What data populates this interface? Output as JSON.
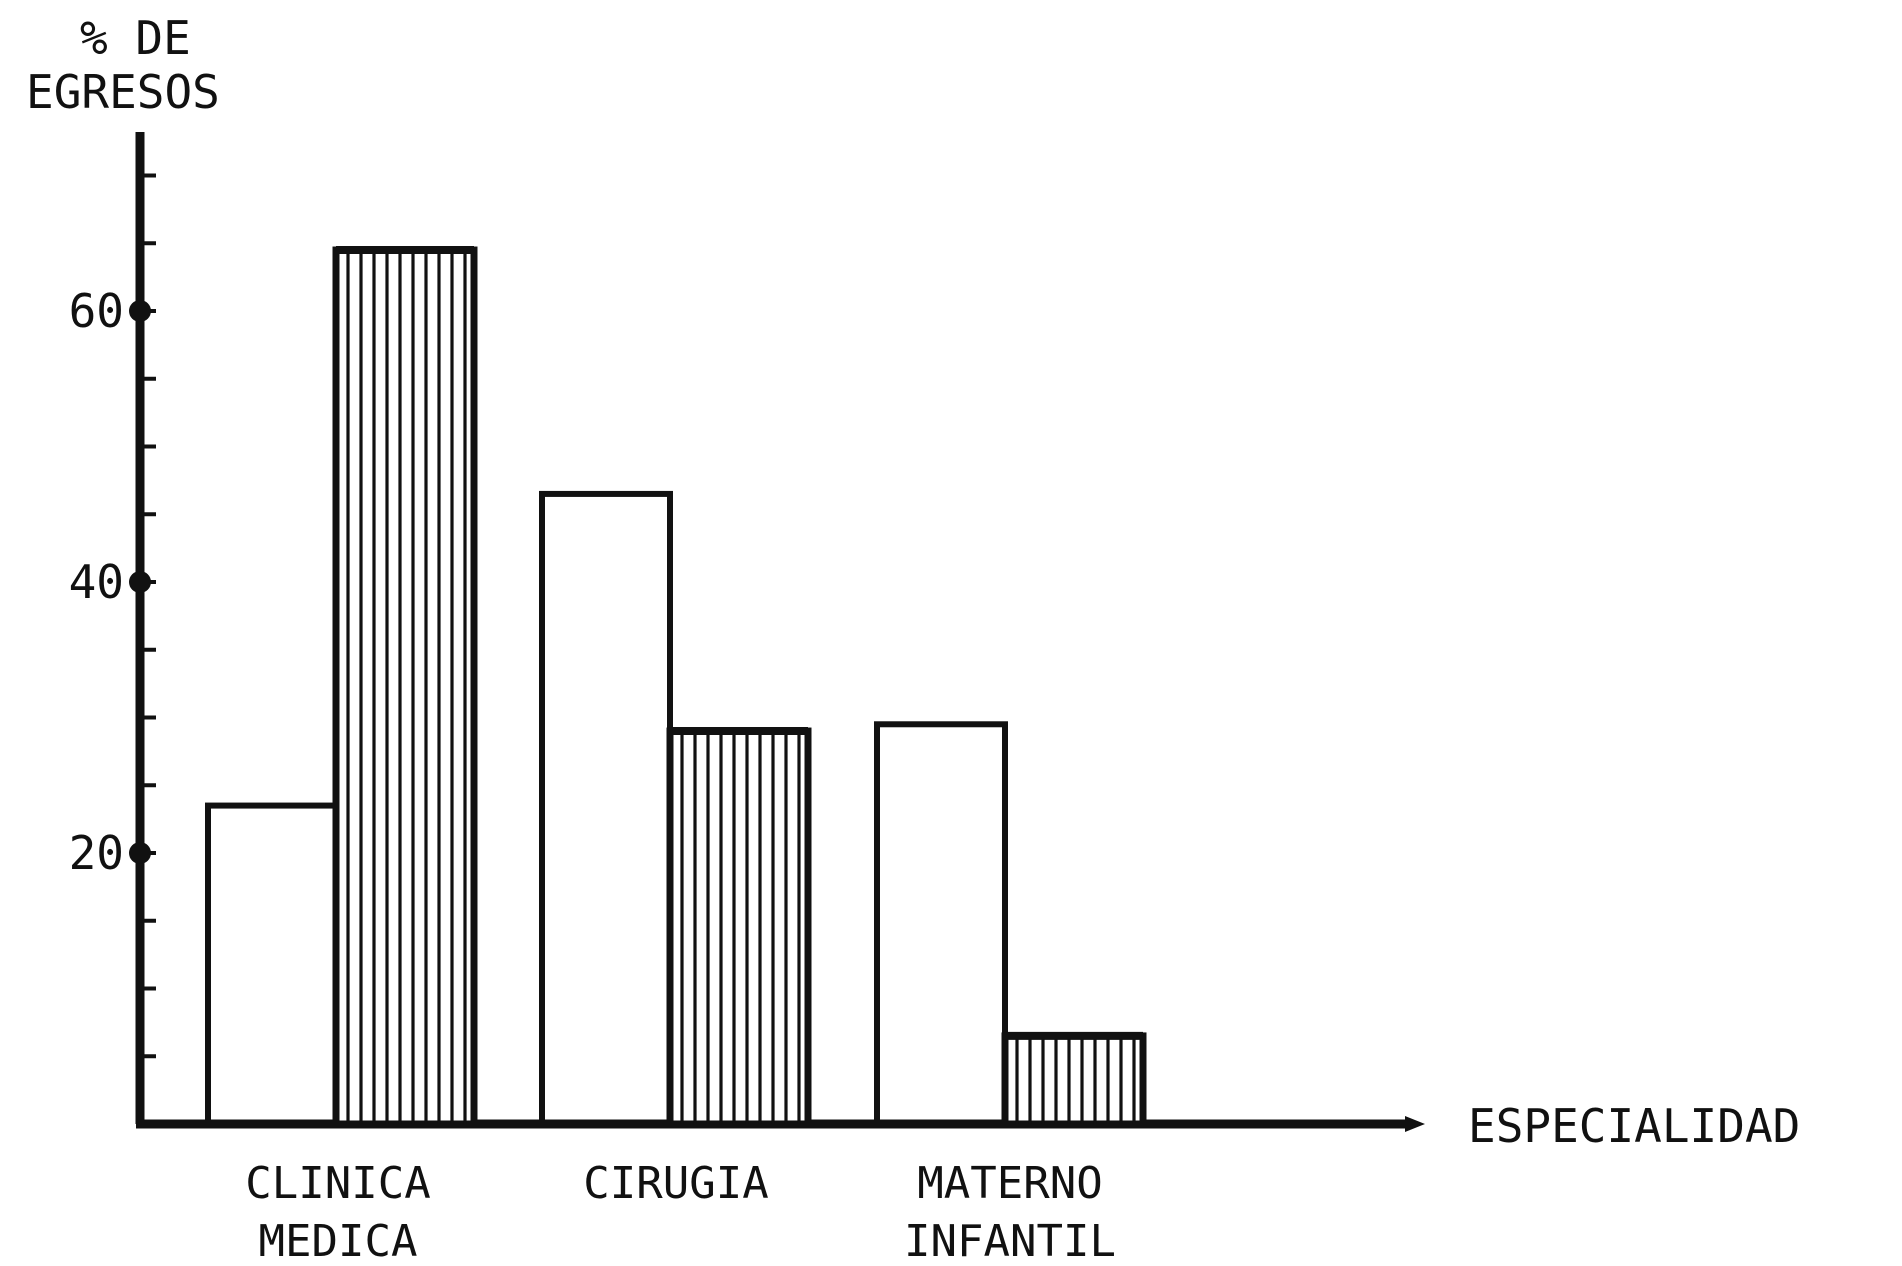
{
  "chart_data": {
    "type": "bar",
    "ylabel_lines": [
      "% DE",
      "EGRESOS"
    ],
    "xlabel": "ESPECIALIDAD",
    "categories": [
      [
        "CLINICA",
        "MEDICA"
      ],
      [
        "CIRUGIA"
      ],
      [
        "MATERNO",
        "INFANTIL"
      ]
    ],
    "series": [
      {
        "fill": "outline",
        "values": [
          23.5,
          46.5,
          29.5
        ]
      },
      {
        "fill": "vertical-hatch",
        "values": [
          64.5,
          29.0,
          6.5
        ]
      }
    ],
    "yticks": [
      20,
      40,
      60
    ],
    "ylim": [
      0,
      72
    ],
    "grid": false,
    "legend": "none",
    "colors": {
      "ink": "#111111",
      "paper": "#ffffff"
    }
  }
}
